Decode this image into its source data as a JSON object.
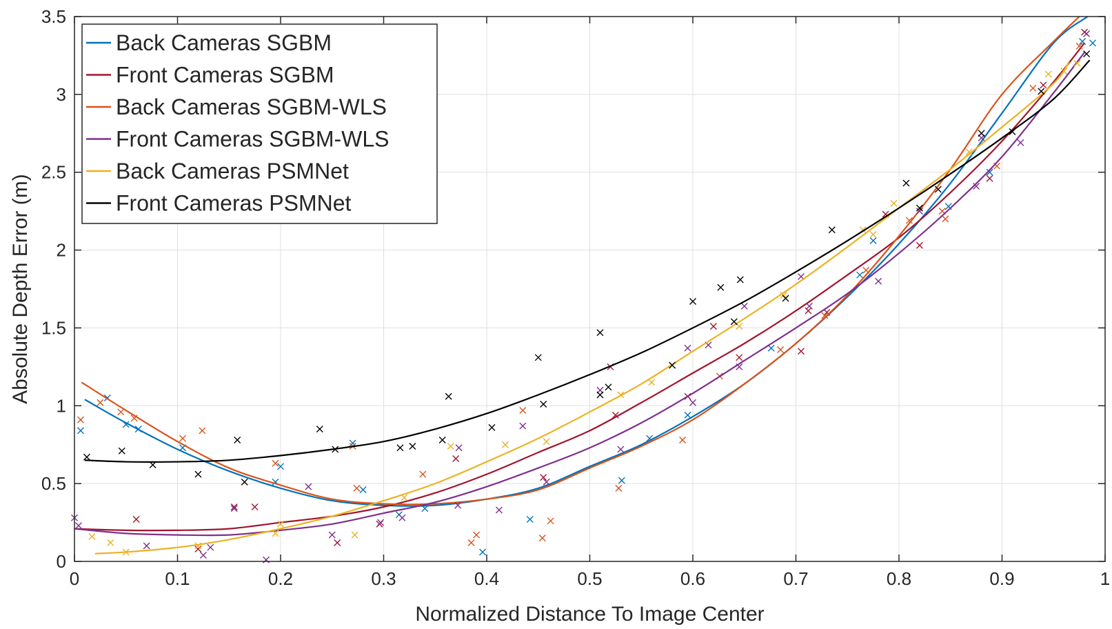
{
  "chart_data": {
    "type": "scatter",
    "title": "",
    "xlabel": "Normalized Distance To Image Center",
    "ylabel": "Absolute Depth Error (m)",
    "xlim": [
      0,
      1
    ],
    "ylim": [
      0,
      3.5
    ],
    "xticks": [
      0,
      0.1,
      0.2,
      0.3,
      0.4,
      0.5,
      0.6,
      0.7,
      0.8,
      0.9,
      1
    ],
    "xtick_labels": [
      "0",
      "0.1",
      "0.2",
      "0.3",
      "0.4",
      "0.5",
      "0.6",
      "0.7",
      "0.8",
      "0.9",
      "1"
    ],
    "yticks": [
      0,
      0.5,
      1,
      1.5,
      2,
      2.5,
      3,
      3.5
    ],
    "ytick_labels": [
      "0",
      "0.5",
      "1",
      "1.5",
      "2",
      "2.5",
      "3",
      "3.5"
    ],
    "grid": true,
    "legend_position": "top-left",
    "series": [
      {
        "name": "Back Cameras SGBM",
        "color": "#0072BD",
        "fit": [
          [
            0.01,
            1.04
          ],
          [
            0.05,
            0.89
          ],
          [
            0.1,
            0.72
          ],
          [
            0.15,
            0.58
          ],
          [
            0.2,
            0.47
          ],
          [
            0.25,
            0.39
          ],
          [
            0.3,
            0.36
          ],
          [
            0.35,
            0.36
          ],
          [
            0.4,
            0.4
          ],
          [
            0.45,
            0.47
          ],
          [
            0.5,
            0.61
          ],
          [
            0.55,
            0.75
          ],
          [
            0.6,
            0.93
          ],
          [
            0.65,
            1.14
          ],
          [
            0.7,
            1.4
          ],
          [
            0.75,
            1.7
          ],
          [
            0.8,
            2.04
          ],
          [
            0.85,
            2.43
          ],
          [
            0.9,
            2.88
          ],
          [
            0.95,
            3.33
          ],
          [
            0.983,
            3.5
          ]
        ],
        "points": [
          [
            0.006,
            0.84
          ],
          [
            0.032,
            1.05
          ],
          [
            0.05,
            0.88
          ],
          [
            0.062,
            0.85
          ],
          [
            0.105,
            0.73
          ],
          [
            0.195,
            0.51
          ],
          [
            0.2,
            0.61
          ],
          [
            0.28,
            0.46
          ],
          [
            0.27,
            0.76
          ],
          [
            0.315,
            0.3
          ],
          [
            0.34,
            0.34
          ],
          [
            0.396,
            0.06
          ],
          [
            0.442,
            0.27
          ],
          [
            0.531,
            0.52
          ],
          [
            0.558,
            0.79
          ],
          [
            0.595,
            0.94
          ],
          [
            0.676,
            1.37
          ],
          [
            0.762,
            1.84
          ],
          [
            0.775,
            2.06
          ],
          [
            0.848,
            2.28
          ],
          [
            0.888,
            2.5
          ],
          [
            0.978,
            3.34
          ],
          [
            0.988,
            3.33
          ]
        ]
      },
      {
        "name": "Front Cameras SGBM",
        "color": "#A2142F",
        "fit": [
          [
            0.0,
            0.21
          ],
          [
            0.05,
            0.2
          ],
          [
            0.1,
            0.2
          ],
          [
            0.15,
            0.21
          ],
          [
            0.2,
            0.25
          ],
          [
            0.25,
            0.29
          ],
          [
            0.3,
            0.35
          ],
          [
            0.35,
            0.44
          ],
          [
            0.4,
            0.56
          ],
          [
            0.45,
            0.7
          ],
          [
            0.5,
            0.84
          ],
          [
            0.55,
            1.02
          ],
          [
            0.6,
            1.21
          ],
          [
            0.65,
            1.4
          ],
          [
            0.7,
            1.61
          ],
          [
            0.75,
            1.84
          ],
          [
            0.8,
            2.08
          ],
          [
            0.85,
            2.37
          ],
          [
            0.9,
            2.7
          ],
          [
            0.95,
            3.08
          ],
          [
            0.98,
            3.33
          ]
        ],
        "points": [
          [
            0.06,
            0.27
          ],
          [
            0.12,
            0.08
          ],
          [
            0.155,
            0.35
          ],
          [
            0.175,
            0.35
          ],
          [
            0.255,
            0.12
          ],
          [
            0.296,
            0.24
          ],
          [
            0.37,
            0.66
          ],
          [
            0.455,
            0.54
          ],
          [
            0.52,
            1.25
          ],
          [
            0.525,
            0.94
          ],
          [
            0.595,
            1.06
          ],
          [
            0.62,
            1.51
          ],
          [
            0.645,
            1.31
          ],
          [
            0.705,
            1.35
          ],
          [
            0.712,
            1.61
          ],
          [
            0.73,
            1.6
          ],
          [
            0.787,
            2.23
          ],
          [
            0.82,
            2.03
          ],
          [
            0.888,
            2.46
          ],
          [
            0.94,
            3.06
          ],
          [
            0.98,
            3.4
          ]
        ]
      },
      {
        "name": "Back Cameras SGBM-WLS",
        "color": "#D95319",
        "fit": [
          [
            0.007,
            1.15
          ],
          [
            0.05,
            0.97
          ],
          [
            0.1,
            0.77
          ],
          [
            0.15,
            0.6
          ],
          [
            0.2,
            0.49
          ],
          [
            0.25,
            0.4
          ],
          [
            0.3,
            0.37
          ],
          [
            0.35,
            0.37
          ],
          [
            0.4,
            0.4
          ],
          [
            0.45,
            0.46
          ],
          [
            0.5,
            0.6
          ],
          [
            0.55,
            0.74
          ],
          [
            0.6,
            0.91
          ],
          [
            0.65,
            1.14
          ],
          [
            0.7,
            1.4
          ],
          [
            0.75,
            1.71
          ],
          [
            0.8,
            2.09
          ],
          [
            0.85,
            2.52
          ],
          [
            0.9,
            3.0
          ],
          [
            0.95,
            3.34
          ],
          [
            0.975,
            3.5
          ]
        ],
        "points": [
          [
            0.006,
            0.91
          ],
          [
            0.025,
            1.02
          ],
          [
            0.045,
            0.96
          ],
          [
            0.058,
            0.92
          ],
          [
            0.105,
            0.79
          ],
          [
            0.124,
            0.84
          ],
          [
            0.195,
            0.63
          ],
          [
            0.27,
            0.74
          ],
          [
            0.274,
            0.47
          ],
          [
            0.338,
            0.56
          ],
          [
            0.385,
            0.12
          ],
          [
            0.39,
            0.17
          ],
          [
            0.435,
            0.97
          ],
          [
            0.454,
            0.15
          ],
          [
            0.462,
            0.26
          ],
          [
            0.528,
            0.47
          ],
          [
            0.59,
            0.78
          ],
          [
            0.626,
            1.19
          ],
          [
            0.685,
            1.36
          ],
          [
            0.728,
            1.58
          ],
          [
            0.768,
            1.87
          ],
          [
            0.81,
            2.19
          ],
          [
            0.845,
            2.2
          ],
          [
            0.842,
            2.25
          ],
          [
            0.895,
            2.54
          ],
          [
            0.93,
            3.04
          ],
          [
            0.975,
            3.31
          ]
        ]
      },
      {
        "name": "Front Cameras SGBM-WLS",
        "color": "#7E2F8E",
        "fit": [
          [
            0.0,
            0.21
          ],
          [
            0.05,
            0.18
          ],
          [
            0.1,
            0.17
          ],
          [
            0.15,
            0.17
          ],
          [
            0.2,
            0.2
          ],
          [
            0.25,
            0.24
          ],
          [
            0.3,
            0.31
          ],
          [
            0.35,
            0.38
          ],
          [
            0.4,
            0.48
          ],
          [
            0.45,
            0.6
          ],
          [
            0.5,
            0.73
          ],
          [
            0.55,
            0.89
          ],
          [
            0.6,
            1.08
          ],
          [
            0.65,
            1.29
          ],
          [
            0.7,
            1.5
          ],
          [
            0.75,
            1.72
          ],
          [
            0.8,
            1.98
          ],
          [
            0.85,
            2.27
          ],
          [
            0.9,
            2.6
          ],
          [
            0.95,
            3.01
          ],
          [
            0.98,
            3.27
          ]
        ],
        "points": [
          [
            0.0,
            0.28
          ],
          [
            0.004,
            0.23
          ],
          [
            0.07,
            0.1
          ],
          [
            0.125,
            0.04
          ],
          [
            0.132,
            0.09
          ],
          [
            0.155,
            0.34
          ],
          [
            0.186,
            0.01
          ],
          [
            0.227,
            0.48
          ],
          [
            0.25,
            0.17
          ],
          [
            0.297,
            0.25
          ],
          [
            0.318,
            0.28
          ],
          [
            0.372,
            0.36
          ],
          [
            0.373,
            0.73
          ],
          [
            0.412,
            0.33
          ],
          [
            0.435,
            0.87
          ],
          [
            0.458,
            0.51
          ],
          [
            0.51,
            1.1
          ],
          [
            0.53,
            0.72
          ],
          [
            0.595,
            1.37
          ],
          [
            0.6,
            1.02
          ],
          [
            0.615,
            1.39
          ],
          [
            0.645,
            1.25
          ],
          [
            0.65,
            1.64
          ],
          [
            0.705,
            1.83
          ],
          [
            0.713,
            1.64
          ],
          [
            0.78,
            1.8
          ],
          [
            0.82,
            2.25
          ],
          [
            0.875,
            2.41
          ],
          [
            0.88,
            2.72
          ],
          [
            0.918,
            2.69
          ],
          [
            0.982,
            3.39
          ]
        ]
      },
      {
        "name": "Back Cameras PSMNet",
        "color": "#EDB120",
        "fit": [
          [
            0.02,
            0.05
          ],
          [
            0.05,
            0.06
          ],
          [
            0.1,
            0.09
          ],
          [
            0.15,
            0.14
          ],
          [
            0.2,
            0.21
          ],
          [
            0.25,
            0.29
          ],
          [
            0.3,
            0.39
          ],
          [
            0.35,
            0.5
          ],
          [
            0.4,
            0.64
          ],
          [
            0.45,
            0.79
          ],
          [
            0.5,
            0.96
          ],
          [
            0.55,
            1.14
          ],
          [
            0.6,
            1.35
          ],
          [
            0.65,
            1.56
          ],
          [
            0.7,
            1.78
          ],
          [
            0.75,
            2.02
          ],
          [
            0.8,
            2.27
          ],
          [
            0.85,
            2.52
          ],
          [
            0.9,
            2.79
          ],
          [
            0.95,
            3.07
          ],
          [
            0.965,
            3.21
          ]
        ],
        "points": [
          [
            0.017,
            0.16
          ],
          [
            0.035,
            0.12
          ],
          [
            0.05,
            0.06
          ],
          [
            0.12,
            0.1
          ],
          [
            0.195,
            0.18
          ],
          [
            0.2,
            0.24
          ],
          [
            0.272,
            0.17
          ],
          [
            0.32,
            0.41
          ],
          [
            0.365,
            0.74
          ],
          [
            0.418,
            0.75
          ],
          [
            0.458,
            0.77
          ],
          [
            0.53,
            1.07
          ],
          [
            0.56,
            1.15
          ],
          [
            0.645,
            1.51
          ],
          [
            0.688,
            1.71
          ],
          [
            0.765,
            2.13
          ],
          [
            0.775,
            2.1
          ],
          [
            0.795,
            2.3
          ],
          [
            0.868,
            2.63
          ],
          [
            0.945,
            3.13
          ],
          [
            0.96,
            3.15
          ],
          [
            0.973,
            3.2
          ]
        ]
      },
      {
        "name": "Front Cameras PSMNet",
        "color": "#000000",
        "fit": [
          [
            0.01,
            0.65
          ],
          [
            0.05,
            0.64
          ],
          [
            0.1,
            0.64
          ],
          [
            0.15,
            0.65
          ],
          [
            0.2,
            0.68
          ],
          [
            0.25,
            0.72
          ],
          [
            0.3,
            0.77
          ],
          [
            0.35,
            0.85
          ],
          [
            0.4,
            0.95
          ],
          [
            0.45,
            1.07
          ],
          [
            0.5,
            1.2
          ],
          [
            0.55,
            1.34
          ],
          [
            0.6,
            1.5
          ],
          [
            0.65,
            1.67
          ],
          [
            0.7,
            1.86
          ],
          [
            0.75,
            2.06
          ],
          [
            0.8,
            2.27
          ],
          [
            0.85,
            2.49
          ],
          [
            0.9,
            2.72
          ],
          [
            0.95,
            2.97
          ],
          [
            0.985,
            3.22
          ]
        ],
        "points": [
          [
            0.012,
            0.67
          ],
          [
            0.046,
            0.71
          ],
          [
            0.076,
            0.62
          ],
          [
            0.12,
            0.56
          ],
          [
            0.165,
            0.51
          ],
          [
            0.158,
            0.78
          ],
          [
            0.238,
            0.85
          ],
          [
            0.253,
            0.72
          ],
          [
            0.316,
            0.73
          ],
          [
            0.328,
            0.74
          ],
          [
            0.357,
            0.78
          ],
          [
            0.363,
            1.06
          ],
          [
            0.405,
            0.86
          ],
          [
            0.45,
            1.31
          ],
          [
            0.455,
            1.01
          ],
          [
            0.51,
            1.47
          ],
          [
            0.51,
            1.07
          ],
          [
            0.518,
            1.12
          ],
          [
            0.58,
            1.26
          ],
          [
            0.6,
            1.67
          ],
          [
            0.627,
            1.76
          ],
          [
            0.64,
            1.54
          ],
          [
            0.646,
            1.81
          ],
          [
            0.69,
            1.69
          ],
          [
            0.735,
            2.13
          ],
          [
            0.807,
            2.43
          ],
          [
            0.82,
            2.27
          ],
          [
            0.838,
            2.39
          ],
          [
            0.88,
            2.75
          ],
          [
            0.91,
            2.76
          ],
          [
            0.938,
            3.02
          ],
          [
            0.982,
            3.26
          ]
        ]
      }
    ]
  }
}
